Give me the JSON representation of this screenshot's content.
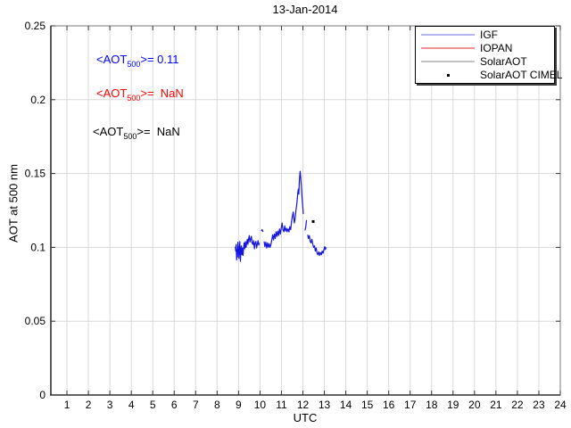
{
  "chart_data": {
    "type": "line",
    "title": "13-Jan-2014",
    "xlabel": "UTC",
    "ylabel": "AOT at 500 nm",
    "xlim": [
      0.25,
      24
    ],
    "ylim": [
      0,
      0.25
    ],
    "xticks": [
      1,
      2,
      3,
      4,
      5,
      6,
      7,
      8,
      9,
      10,
      11,
      12,
      13,
      14,
      15,
      16,
      17,
      18,
      19,
      20,
      21,
      22,
      23,
      24
    ],
    "yticks": [
      0,
      0.05,
      0.1,
      0.15,
      0.2,
      0.25
    ],
    "ytick_labels": [
      "0",
      "0.05",
      "0.1",
      "0.15",
      "0.2",
      "0.25"
    ],
    "grid": true,
    "colors": {
      "grid": "#d9d9d9",
      "axis": "#303030",
      "frame": "#7a7a7a",
      "igf_line": "#1414e0",
      "cimel_marker": "#000000",
      "annotation_igf": "#0000ff",
      "annotation_iopan": "#ff0000",
      "annotation_solaraot": "#000000"
    },
    "legend": {
      "position": "top-right",
      "entries": [
        {
          "label": "IGF",
          "marker": "line",
          "sample_color": "#b4b4f0"
        },
        {
          "label": "IOPAN",
          "marker": "line",
          "sample_color": "#f79090"
        },
        {
          "label": "SolarAOT",
          "marker": "line",
          "sample_color": "#c2c2c2"
        },
        {
          "label": "SolarAOT CIMEL",
          "marker": "dot",
          "sample_color": "#000000"
        }
      ]
    },
    "annotations": [
      {
        "prefix": "<AOT",
        "sub": "500",
        "rest": ">= 0.11",
        "mean_value": "0.11",
        "color": "#0000ff",
        "x": 108,
        "y": 59
      },
      {
        "prefix": "<AOT",
        "sub": "500",
        "rest": ">=  NaN",
        "mean_value": "NaN",
        "color": "#ff0000",
        "x": 108,
        "y": 97
      },
      {
        "prefix": "<AOT",
        "sub": "500",
        "rest": ">=  NaN",
        "mean_value": "NaN",
        "color": "#000000",
        "x": 104,
        "y": 140
      }
    ],
    "series": [
      {
        "name": "IGF",
        "type": "line",
        "color": "#1414e0",
        "segments": [
          [
            [
              8.85,
              0.1005
            ],
            [
              8.87,
              0.0975
            ],
            [
              8.89,
              0.102
            ],
            [
              8.91,
              0.0915
            ],
            [
              8.93,
              0.0985
            ],
            [
              8.95,
              0.0935
            ],
            [
              8.97,
              0.1035
            ],
            [
              9.0,
              0.0995
            ],
            [
              9.02,
              0.0925
            ],
            [
              9.04,
              0.0985
            ],
            [
              9.06,
              0.104
            ],
            [
              9.09,
              0.0905
            ],
            [
              9.11,
              0.0975
            ],
            [
              9.13,
              0.101
            ],
            [
              9.16,
              0.095
            ],
            [
              9.18,
              0.0995
            ],
            [
              9.21,
              0.0945
            ],
            [
              9.23,
              0.099
            ],
            [
              9.26,
              0.103
            ],
            [
              9.29,
              0.099
            ],
            [
              9.32,
              0.104
            ],
            [
              9.35,
              0.1
            ],
            [
              9.38,
              0.103
            ],
            [
              9.41,
              0.1055
            ],
            [
              9.44,
              0.102
            ],
            [
              9.47,
              0.106
            ],
            [
              9.5,
              0.108
            ],
            [
              9.53,
              0.1035
            ],
            [
              9.57,
              0.106
            ],
            [
              9.6,
              0.1075
            ],
            [
              9.63,
              0.103
            ],
            [
              9.67,
              0.102
            ],
            [
              9.7,
              0.1045
            ],
            [
              9.74,
              0.099
            ],
            [
              9.77,
              0.103
            ],
            [
              9.81,
              0.104
            ],
            [
              9.84,
              0.0995
            ],
            [
              9.88,
              0.1025
            ],
            [
              9.91,
              0.1045
            ],
            [
              9.94,
              0.1015
            ],
            [
              9.97,
              0.103
            ]
          ],
          [
            [
              10.06,
              0.111
            ],
            [
              10.1,
              0.112
            ],
            [
              10.14,
              0.1105
            ]
          ],
          [
            [
              10.19,
              0.104
            ],
            [
              10.23,
              0.1005
            ],
            [
              10.27,
              0.1035
            ],
            [
              10.31,
              0.0995
            ],
            [
              10.35,
              0.103
            ],
            [
              10.39,
              0.1
            ],
            [
              10.43,
              0.1025
            ],
            [
              10.47,
              0.1
            ],
            [
              10.51,
              0.102
            ],
            [
              10.55,
              0.105
            ],
            [
              10.59,
              0.1085
            ],
            [
              10.63,
              0.105
            ],
            [
              10.67,
              0.109
            ],
            [
              10.71,
              0.106
            ],
            [
              10.75,
              0.1105
            ],
            [
              10.79,
              0.1075
            ],
            [
              10.83,
              0.111
            ],
            [
              10.87,
              0.108
            ],
            [
              10.91,
              0.1125
            ],
            [
              10.95,
              0.109
            ],
            [
              10.99,
              0.113
            ],
            [
              11.03,
              0.1165
            ],
            [
              11.07,
              0.112
            ],
            [
              11.11,
              0.1105
            ],
            [
              11.15,
              0.1145
            ],
            [
              11.19,
              0.111
            ],
            [
              11.23,
              0.113
            ],
            [
              11.27,
              0.1105
            ],
            [
              11.31,
              0.1125
            ],
            [
              11.35,
              0.1105
            ],
            [
              11.39,
              0.114
            ],
            [
              11.43,
              0.112
            ],
            [
              11.47,
              0.1175
            ],
            [
              11.51,
              0.121
            ],
            [
              11.55,
              0.124
            ],
            [
              11.6,
              0.1165
            ],
            [
              11.64,
              0.1195
            ],
            [
              11.68,
              0.1255
            ],
            [
              11.72,
              0.13
            ],
            [
              11.76,
              0.1365
            ],
            [
              11.79,
              0.1395
            ],
            [
              11.81,
              0.136
            ],
            [
              11.84,
              0.1455
            ],
            [
              11.87,
              0.1515
            ],
            [
              11.9,
              0.147
            ],
            [
              11.93,
              0.1415
            ],
            [
              11.96,
              0.134
            ],
            [
              11.99,
              0.128
            ],
            [
              12.02,
              0.1225
            ]
          ],
          [
            [
              12.1,
              0.1115
            ],
            [
              12.13,
              0.1135
            ],
            [
              12.17,
              0.1185
            ]
          ],
          [
            [
              12.22,
              0.1085
            ],
            [
              12.26,
              0.106
            ],
            [
              12.3,
              0.108
            ],
            [
              12.34,
              0.104
            ],
            [
              12.38,
              0.103
            ],
            [
              12.42,
              0.1055
            ],
            [
              12.46,
              0.102
            ],
            [
              12.5,
              0.1
            ],
            [
              12.54,
              0.101
            ],
            [
              12.58,
              0.0975
            ],
            [
              12.62,
              0.0995
            ],
            [
              12.66,
              0.096
            ],
            [
              12.7,
              0.095
            ],
            [
              12.74,
              0.097
            ],
            [
              12.78,
              0.0945
            ],
            [
              12.82,
              0.0965
            ],
            [
              12.86,
              0.095
            ],
            [
              12.9,
              0.0975
            ],
            [
              12.94,
              0.096
            ],
            [
              12.98,
              0.0985
            ],
            [
              13.02,
              0.1005
            ],
            [
              13.05,
              0.0985
            ],
            [
              13.08,
              0.1
            ]
          ]
        ]
      },
      {
        "name": "IOPAN",
        "type": "line",
        "color": "#ff0000",
        "segments": []
      },
      {
        "name": "SolarAOT",
        "type": "line",
        "color": "#999999",
        "segments": []
      },
      {
        "name": "SolarAOT CIMEL",
        "type": "scatter",
        "color": "#000000",
        "points": [
          [
            12.48,
            0.1175
          ]
        ]
      }
    ]
  }
}
